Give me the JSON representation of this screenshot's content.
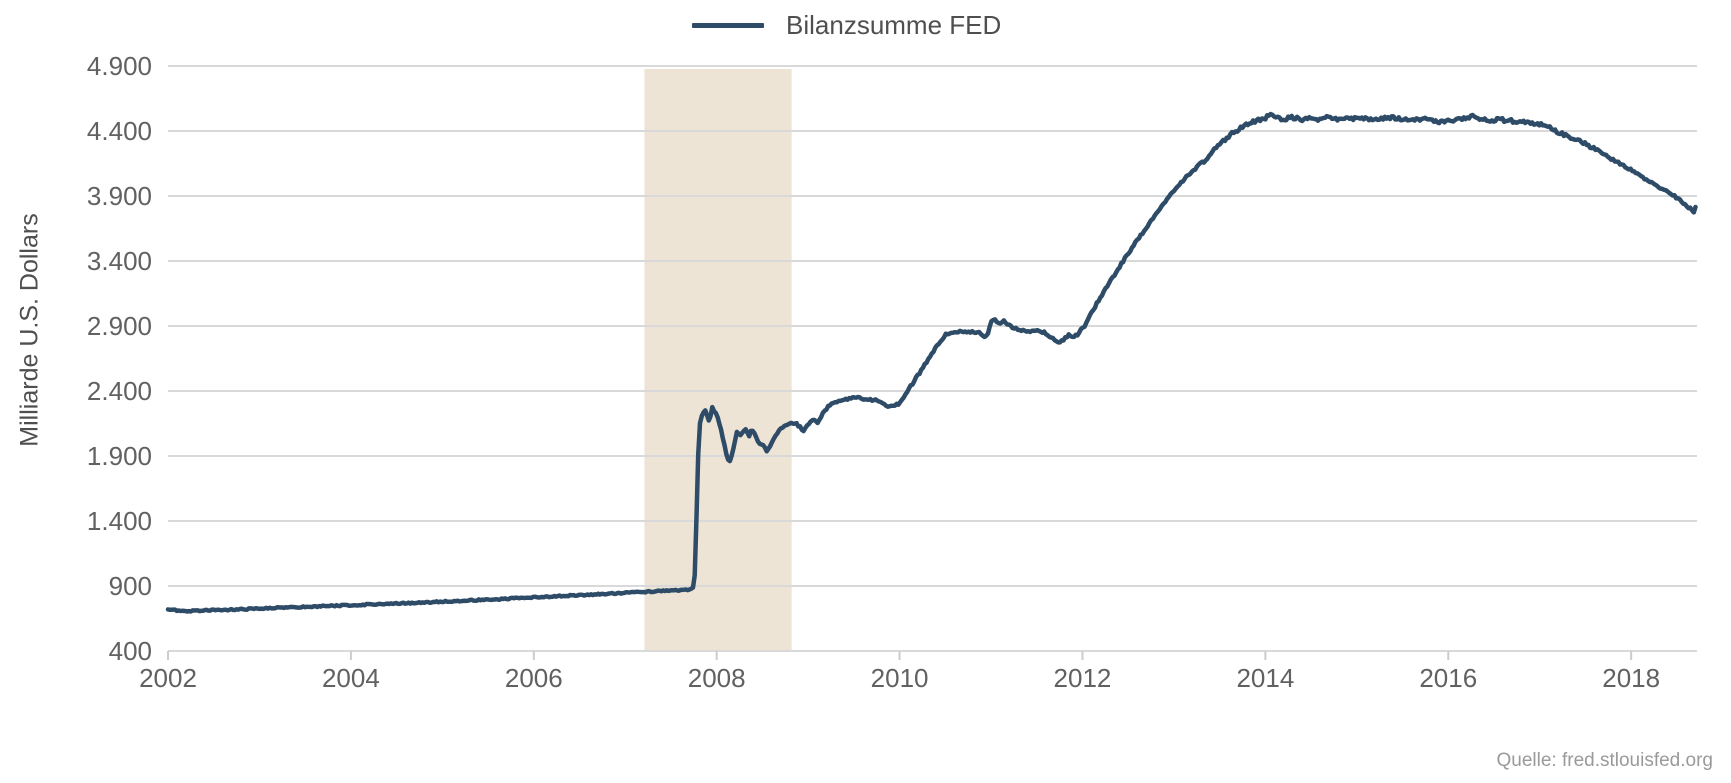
{
  "legend": {
    "label": "Bilanzsumme FED"
  },
  "y_axis_title": "Milliarde U.S. Dollars",
  "source_note": "Quelle: fred.stlouisfed.org",
  "colors": {
    "line": "#2e4c67",
    "grid": "#d9d9d9",
    "tick_mark": "#cccccc",
    "band": "#ede4d5",
    "tick_text": "#616161",
    "muted_text": "#9a9a9a",
    "background": "#ffffff"
  },
  "chart_data": {
    "type": "line",
    "title": "",
    "xlabel": "",
    "ylabel": "Milliarde U.S. Dollars",
    "legend_position": "top-center",
    "grid": "horizontal-only",
    "xlim": [
      2002,
      2018.72
    ],
    "ylim": [
      400,
      4900
    ],
    "x_ticks": [
      2002,
      2004,
      2006,
      2008,
      2010,
      2012,
      2014,
      2016,
      2018
    ],
    "y_ticks": [
      400,
      900,
      1400,
      1900,
      2400,
      2900,
      3400,
      3900,
      4400,
      4900
    ],
    "y_tick_labels": [
      "400",
      "900",
      "1.400",
      "1.900",
      "2.400",
      "2.900",
      "3.400",
      "3.900",
      "4.400",
      "4.900"
    ],
    "shaded_region": {
      "x_start": 2007.21,
      "x_end": 2008.82,
      "label": "financial-crisis-band"
    },
    "sample_step_years": 0.0192,
    "noise": {
      "base": 9,
      "low_level": 5,
      "plateau": 14
    },
    "series": [
      {
        "name": "Bilanzsumme FED",
        "unit": "Milliarde U.S. Dollars",
        "points": [
          [
            2002.0,
            720
          ],
          [
            2002.1,
            712
          ],
          [
            2002.2,
            705
          ],
          [
            2002.35,
            710
          ],
          [
            2002.5,
            714
          ],
          [
            2002.7,
            718
          ],
          [
            2002.85,
            722
          ],
          [
            2003.0,
            728
          ],
          [
            2003.2,
            733
          ],
          [
            2003.4,
            738
          ],
          [
            2003.6,
            742
          ],
          [
            2003.8,
            748
          ],
          [
            2004.0,
            752
          ],
          [
            2004.2,
            758
          ],
          [
            2004.4,
            763
          ],
          [
            2004.6,
            768
          ],
          [
            2004.8,
            774
          ],
          [
            2005.0,
            780
          ],
          [
            2005.2,
            786
          ],
          [
            2005.4,
            792
          ],
          [
            2005.6,
            798
          ],
          [
            2005.8,
            806
          ],
          [
            2006.0,
            814
          ],
          [
            2006.2,
            820
          ],
          [
            2006.4,
            826
          ],
          [
            2006.6,
            832
          ],
          [
            2006.8,
            840
          ],
          [
            2007.0,
            848
          ],
          [
            2007.2,
            855
          ],
          [
            2007.4,
            862
          ],
          [
            2007.6,
            868
          ],
          [
            2007.7,
            872
          ],
          [
            2007.74,
            885
          ],
          [
            2007.76,
            980
          ],
          [
            2007.78,
            1450
          ],
          [
            2007.8,
            1950
          ],
          [
            2007.82,
            2180
          ],
          [
            2007.85,
            2230
          ],
          [
            2007.88,
            2255
          ],
          [
            2007.9,
            2200
          ],
          [
            2007.92,
            2160
          ],
          [
            2007.95,
            2270
          ],
          [
            2007.98,
            2245
          ],
          [
            2008.0,
            2225
          ],
          [
            2008.04,
            2120
          ],
          [
            2008.08,
            2000
          ],
          [
            2008.12,
            1880
          ],
          [
            2008.15,
            1850
          ],
          [
            2008.18,
            1955
          ],
          [
            2008.22,
            2085
          ],
          [
            2008.25,
            2060
          ],
          [
            2008.28,
            2075
          ],
          [
            2008.32,
            2115
          ],
          [
            2008.35,
            2050
          ],
          [
            2008.38,
            2095
          ],
          [
            2008.42,
            2065
          ],
          [
            2008.46,
            2000
          ],
          [
            2008.5,
            1985
          ],
          [
            2008.55,
            1935
          ],
          [
            2008.6,
            2000
          ],
          [
            2008.65,
            2060
          ],
          [
            2008.7,
            2120
          ],
          [
            2008.75,
            2130
          ],
          [
            2008.8,
            2150
          ],
          [
            2008.85,
            2160
          ],
          [
            2008.9,
            2130
          ],
          [
            2008.95,
            2090
          ],
          [
            2009.0,
            2140
          ],
          [
            2009.05,
            2175
          ],
          [
            2009.1,
            2155
          ],
          [
            2009.15,
            2215
          ],
          [
            2009.2,
            2265
          ],
          [
            2009.25,
            2305
          ],
          [
            2009.3,
            2320
          ],
          [
            2009.4,
            2330
          ],
          [
            2009.5,
            2350
          ],
          [
            2009.55,
            2355
          ],
          [
            2009.6,
            2340
          ],
          [
            2009.65,
            2330
          ],
          [
            2009.7,
            2332
          ],
          [
            2009.75,
            2336
          ],
          [
            2009.8,
            2320
          ],
          [
            2009.85,
            2295
          ],
          [
            2009.9,
            2275
          ],
          [
            2009.95,
            2290
          ],
          [
            2010.0,
            2305
          ],
          [
            2010.1,
            2415
          ],
          [
            2010.2,
            2520
          ],
          [
            2010.3,
            2625
          ],
          [
            2010.4,
            2740
          ],
          [
            2010.5,
            2835
          ],
          [
            2010.55,
            2850
          ],
          [
            2010.6,
            2858
          ],
          [
            2010.7,
            2852
          ],
          [
            2010.8,
            2855
          ],
          [
            2010.88,
            2845
          ],
          [
            2010.92,
            2806
          ],
          [
            2010.96,
            2830
          ],
          [
            2011.0,
            2935
          ],
          [
            2011.05,
            2945
          ],
          [
            2011.1,
            2920
          ],
          [
            2011.15,
            2940
          ],
          [
            2011.2,
            2900
          ],
          [
            2011.3,
            2868
          ],
          [
            2011.4,
            2858
          ],
          [
            2011.5,
            2868
          ],
          [
            2011.6,
            2845
          ],
          [
            2011.7,
            2790
          ],
          [
            2011.75,
            2775
          ],
          [
            2011.8,
            2800
          ],
          [
            2011.85,
            2835
          ],
          [
            2011.9,
            2805
          ],
          [
            2011.95,
            2840
          ],
          [
            2012.0,
            2885
          ],
          [
            2012.05,
            2925
          ],
          [
            2012.1,
            3005
          ],
          [
            2012.2,
            3125
          ],
          [
            2012.3,
            3240
          ],
          [
            2012.4,
            3350
          ],
          [
            2012.5,
            3460
          ],
          [
            2012.6,
            3560
          ],
          [
            2012.7,
            3660
          ],
          [
            2012.8,
            3760
          ],
          [
            2012.9,
            3855
          ],
          [
            2013.0,
            3940
          ],
          [
            2013.1,
            4020
          ],
          [
            2013.2,
            4090
          ],
          [
            2013.3,
            4155
          ],
          [
            2013.35,
            4170
          ],
          [
            2013.4,
            4230
          ],
          [
            2013.5,
            4300
          ],
          [
            2013.6,
            4360
          ],
          [
            2013.7,
            4410
          ],
          [
            2013.8,
            4450
          ],
          [
            2013.9,
            4480
          ],
          [
            2014.0,
            4500
          ],
          [
            2014.05,
            4525
          ],
          [
            2014.1,
            4510
          ],
          [
            2014.2,
            4490
          ],
          [
            2014.3,
            4505
          ],
          [
            2014.4,
            4485
          ],
          [
            2014.5,
            4500
          ],
          [
            2014.6,
            4490
          ],
          [
            2014.7,
            4505
          ],
          [
            2014.8,
            4490
          ],
          [
            2014.9,
            4500
          ],
          [
            2015.0,
            4490
          ],
          [
            2015.1,
            4500
          ],
          [
            2015.2,
            4485
          ],
          [
            2015.3,
            4495
          ],
          [
            2015.4,
            4505
          ],
          [
            2015.5,
            4490
          ],
          [
            2015.6,
            4480
          ],
          [
            2015.7,
            4495
          ],
          [
            2015.8,
            4485
          ],
          [
            2015.9,
            4470
          ],
          [
            2016.0,
            4480
          ],
          [
            2016.1,
            4490
          ],
          [
            2016.2,
            4500
          ],
          [
            2016.27,
            4510
          ],
          [
            2016.35,
            4490
          ],
          [
            2016.45,
            4480
          ],
          [
            2016.55,
            4490
          ],
          [
            2016.65,
            4480
          ],
          [
            2016.75,
            4475
          ],
          [
            2016.85,
            4470
          ],
          [
            2016.95,
            4455
          ],
          [
            2017.0,
            4450
          ],
          [
            2017.1,
            4430
          ],
          [
            2017.2,
            4395
          ],
          [
            2017.3,
            4360
          ],
          [
            2017.4,
            4330
          ],
          [
            2017.5,
            4300
          ],
          [
            2017.6,
            4260
          ],
          [
            2017.7,
            4215
          ],
          [
            2017.8,
            4180
          ],
          [
            2017.9,
            4140
          ],
          [
            2018.0,
            4100
          ],
          [
            2018.1,
            4055
          ],
          [
            2018.2,
            4010
          ],
          [
            2018.3,
            3970
          ],
          [
            2018.4,
            3940
          ],
          [
            2018.5,
            3885
          ],
          [
            2018.55,
            3860
          ],
          [
            2018.6,
            3830
          ],
          [
            2018.65,
            3800
          ],
          [
            2018.68,
            3778
          ],
          [
            2018.7,
            3790
          ],
          [
            2018.72,
            3880
          ]
        ]
      }
    ]
  }
}
